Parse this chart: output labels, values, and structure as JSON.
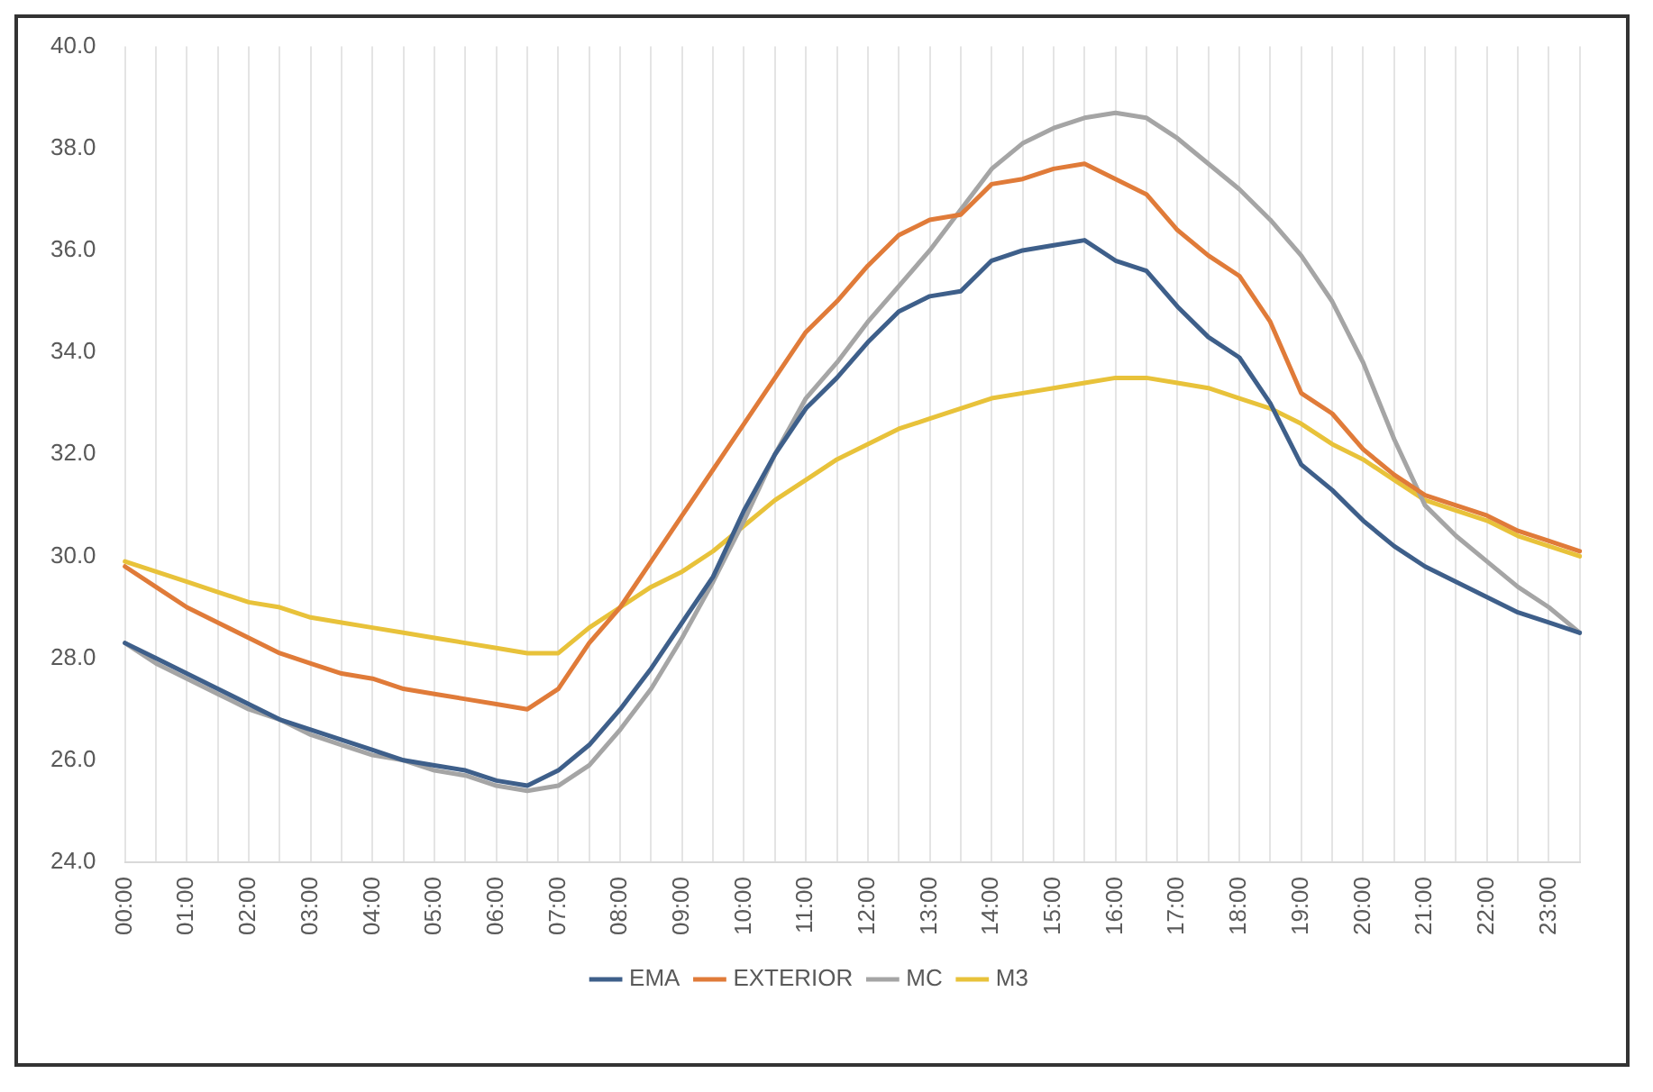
{
  "chart_data": {
    "type": "line",
    "categories": [
      "00:00",
      null,
      "01:00",
      null,
      "02:00",
      null,
      "03:00",
      null,
      "04:00",
      null,
      "05:00",
      null,
      "06:00",
      null,
      "07:00",
      null,
      "08:00",
      null,
      "09:00",
      null,
      "10:00",
      null,
      "11:00",
      null,
      "12:00",
      null,
      "13:00",
      null,
      "14:00",
      null,
      "15:00",
      null,
      "16:00",
      null,
      "17:00",
      null,
      "18:00",
      null,
      "19:00",
      null,
      "20:00",
      null,
      "21:00",
      null,
      "22:00",
      null,
      "23:00",
      null
    ],
    "series": [
      {
        "name": "EMA",
        "color": "#3e5f8a",
        "values": [
          28.3,
          28.0,
          27.7,
          27.4,
          27.1,
          26.8,
          26.6,
          26.4,
          26.2,
          26.0,
          25.9,
          25.8,
          25.6,
          25.5,
          25.8,
          26.3,
          27.0,
          27.8,
          28.7,
          29.6,
          30.9,
          32.0,
          32.9,
          33.5,
          34.2,
          34.8,
          35.1,
          35.2,
          35.8,
          36.0,
          36.1,
          36.2,
          35.8,
          35.6,
          34.9,
          34.3,
          33.9,
          33.0,
          31.8,
          31.3,
          30.7,
          30.2,
          29.8,
          29.5,
          29.2,
          28.9,
          28.7,
          28.5
        ]
      },
      {
        "name": "EXTERIOR",
        "color": "#e07b39",
        "values": [
          29.8,
          29.4,
          29.0,
          28.7,
          28.4,
          28.1,
          27.9,
          27.7,
          27.6,
          27.4,
          27.3,
          27.2,
          27.1,
          27.0,
          27.4,
          28.3,
          29.0,
          29.9,
          30.8,
          31.7,
          32.6,
          33.5,
          34.4,
          35.0,
          35.7,
          36.3,
          36.6,
          36.7,
          37.3,
          37.4,
          37.6,
          37.7,
          37.4,
          37.1,
          36.4,
          35.9,
          35.5,
          34.6,
          33.2,
          32.8,
          32.1,
          31.6,
          31.2,
          31.0,
          30.8,
          30.5,
          30.3,
          30.1
        ]
      },
      {
        "name": "MC",
        "color": "#a5a5a5",
        "values": [
          28.3,
          27.9,
          27.6,
          27.3,
          27.0,
          26.8,
          26.5,
          26.3,
          26.1,
          26.0,
          25.8,
          25.7,
          25.5,
          25.4,
          25.5,
          25.9,
          26.6,
          27.4,
          28.4,
          29.5,
          30.7,
          32.0,
          33.1,
          33.8,
          34.6,
          35.3,
          36.0,
          36.8,
          37.6,
          38.1,
          38.4,
          38.6,
          38.7,
          38.6,
          38.2,
          37.7,
          37.2,
          36.6,
          35.9,
          35.0,
          33.8,
          32.3,
          31.0,
          30.4,
          29.9,
          29.4,
          29.0,
          28.5
        ]
      },
      {
        "name": "M3",
        "color": "#e8c23a",
        "values": [
          29.9,
          29.7,
          29.5,
          29.3,
          29.1,
          29.0,
          28.8,
          28.7,
          28.6,
          28.5,
          28.4,
          28.3,
          28.2,
          28.1,
          28.1,
          28.6,
          29.0,
          29.4,
          29.7,
          30.1,
          30.6,
          31.1,
          31.5,
          31.9,
          32.2,
          32.5,
          32.7,
          32.9,
          33.1,
          33.2,
          33.3,
          33.4,
          33.5,
          33.5,
          33.4,
          33.3,
          33.1,
          32.9,
          32.6,
          32.2,
          31.9,
          31.5,
          31.1,
          30.9,
          30.7,
          30.4,
          30.2,
          30.0
        ]
      }
    ],
    "ylim": [
      24,
      40
    ],
    "yticks": [
      {
        "value": 24,
        "label": "24.0"
      },
      {
        "value": 26,
        "label": "26.0"
      },
      {
        "value": 28,
        "label": "28.0"
      },
      {
        "value": 30,
        "label": "30.0"
      },
      {
        "value": 32,
        "label": "32.0"
      },
      {
        "value": 34,
        "label": "34.0"
      },
      {
        "value": 36,
        "label": "36.0"
      },
      {
        "value": 38,
        "label": "38.0"
      },
      {
        "value": 40,
        "label": "40.0"
      }
    ],
    "grid": "x",
    "legend": "bottom",
    "marker": "none",
    "line_style": "solid"
  }
}
